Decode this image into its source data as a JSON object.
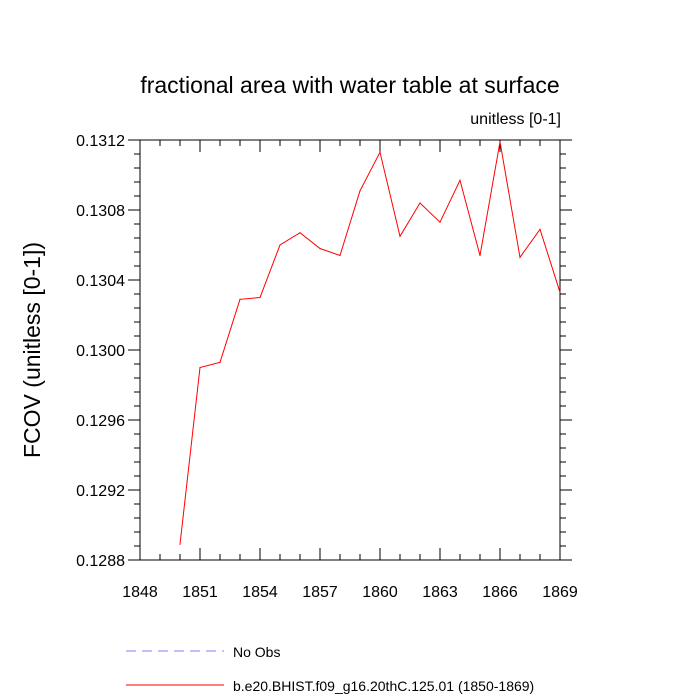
{
  "chart_data": {
    "type": "line",
    "title": "fractional area with water table at surface",
    "subtitle": "unitless [0-1]",
    "ylabel": "FCOV  (unitless [0-1])",
    "xlabel": "",
    "xlim": [
      1848,
      1869
    ],
    "ylim": [
      0.1288,
      0.1312
    ],
    "x_ticks": [
      1848,
      1851,
      1854,
      1857,
      1860,
      1863,
      1866,
      1869
    ],
    "y_ticks": [
      0.1288,
      0.1292,
      0.1296,
      0.13,
      0.1304,
      0.1308,
      0.1312
    ],
    "x_tick_labels": [
      "1848",
      "1851",
      "1854",
      "1857",
      "1860",
      "1863",
      "1866",
      "1869"
    ],
    "y_tick_labels": [
      "0.1288",
      "0.1292",
      "0.1296",
      "0.1300",
      "0.1304",
      "0.1308",
      "0.1312"
    ],
    "grid": false,
    "legend_position": "bottom",
    "series": [
      {
        "name": "b.e20.BHIST.f09_g16.20thC.125.01 (1850-1869)",
        "color": "#ff0000",
        "style": "solid",
        "x": [
          1850,
          1851,
          1852,
          1853,
          1854,
          1855,
          1856,
          1857,
          1858,
          1859,
          1860,
          1861,
          1862,
          1863,
          1864,
          1865,
          1866,
          1867,
          1868,
          1869
        ],
        "y": [
          0.12889,
          0.1299,
          0.12993,
          0.13029,
          0.1303,
          0.1306,
          0.13067,
          0.13058,
          0.13054,
          0.13091,
          0.13113,
          0.13065,
          0.13084,
          0.13073,
          0.13097,
          0.13054,
          0.13119,
          0.13053,
          0.13069,
          0.13033
        ]
      }
    ],
    "legend": [
      {
        "label": "No Obs",
        "color": "#8080ff",
        "style": "dashed"
      },
      {
        "label": "b.e20.BHIST.f09_g16.20thC.125.01 (1850-1869)",
        "color": "#ff0000",
        "style": "solid"
      }
    ]
  }
}
